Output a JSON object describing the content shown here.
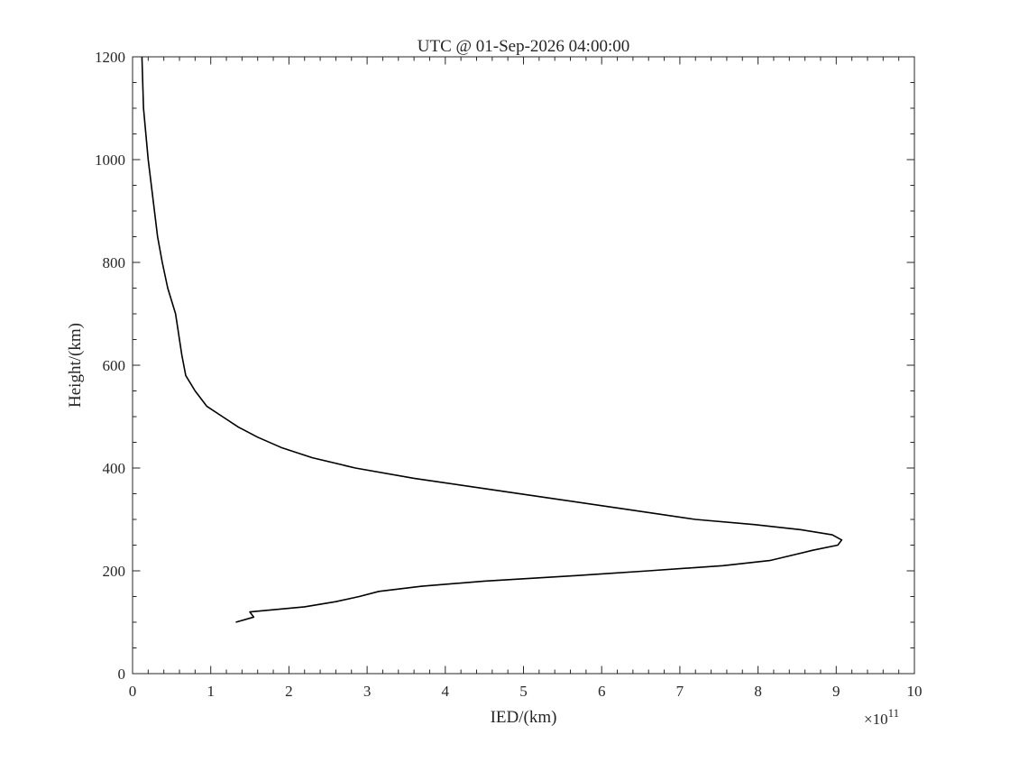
{
  "chart_data": {
    "type": "line",
    "title": "UTC @ 01-Sep-2026 04:00:00",
    "xlabel": "IED/(km)",
    "ylabel": "Height/(km)",
    "x_exponent_label": {
      "base": "×10",
      "exp": "11"
    },
    "x_scale_factor": 100000000000.0,
    "xlim": [
      0,
      10
    ],
    "ylim": [
      0,
      1200
    ],
    "xticks": [
      0,
      1,
      2,
      3,
      4,
      5,
      6,
      7,
      8,
      9,
      10
    ],
    "yticks": [
      0,
      200,
      400,
      600,
      800,
      1000,
      1200
    ],
    "grid": false,
    "legend": "none",
    "colors": {
      "line": "#000000",
      "axes": "#262626"
    },
    "series": [
      {
        "x": [
          1.32,
          1.55,
          1.5,
          2.2,
          2.6,
          2.9,
          3.15,
          3.7,
          4.5,
          5.6,
          6.6,
          7.55,
          8.15,
          8.7,
          9.02,
          9.07,
          8.95,
          8.55,
          7.95,
          7.2,
          6.3,
          5.4,
          4.5,
          3.6,
          2.85,
          2.3,
          1.9,
          1.6,
          1.35,
          1.15,
          0.95,
          0.8,
          0.68,
          0.63,
          0.55,
          0.45,
          0.38,
          0.32,
          0.28,
          0.24,
          0.2,
          0.17,
          0.14,
          0.12
        ],
        "y": [
          100,
          110,
          120,
          130,
          140,
          150,
          160,
          170,
          180,
          190,
          200,
          210,
          220,
          240,
          250,
          260,
          270,
          280,
          290,
          300,
          320,
          340,
          360,
          380,
          400,
          420,
          440,
          460,
          480,
          500,
          520,
          550,
          580,
          620,
          700,
          750,
          800,
          850,
          900,
          950,
          1000,
          1050,
          1100,
          1200
        ]
      }
    ]
  }
}
